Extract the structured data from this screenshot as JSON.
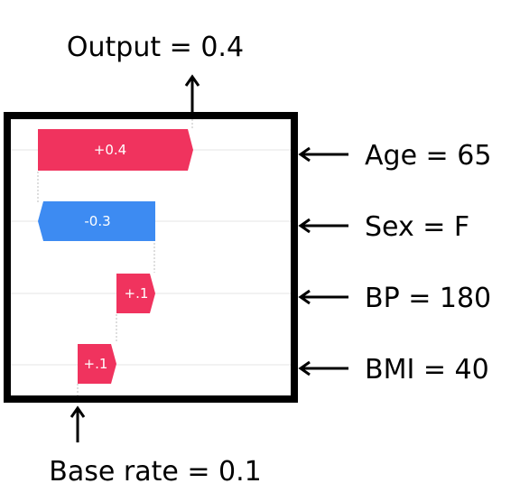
{
  "output_label": "Output = 0.4",
  "base_label": "Base rate = 0.1",
  "colors": {
    "positive": "#f0335e",
    "negative": "#3d8bf2",
    "frame": "#000000",
    "grid": "#e6e6e6",
    "connector": "#bdbdbd"
  },
  "features": [
    {
      "label": "Age = 65",
      "contribution": 0.4,
      "text": "+0.4"
    },
    {
      "label": "Sex = F",
      "contribution": -0.3,
      "text": "-0.3"
    },
    {
      "label": "BP = 180",
      "contribution": 0.1,
      "text": "+.1"
    },
    {
      "label": "BMI = 40",
      "contribution": 0.1,
      "text": "+.1"
    }
  ]
}
